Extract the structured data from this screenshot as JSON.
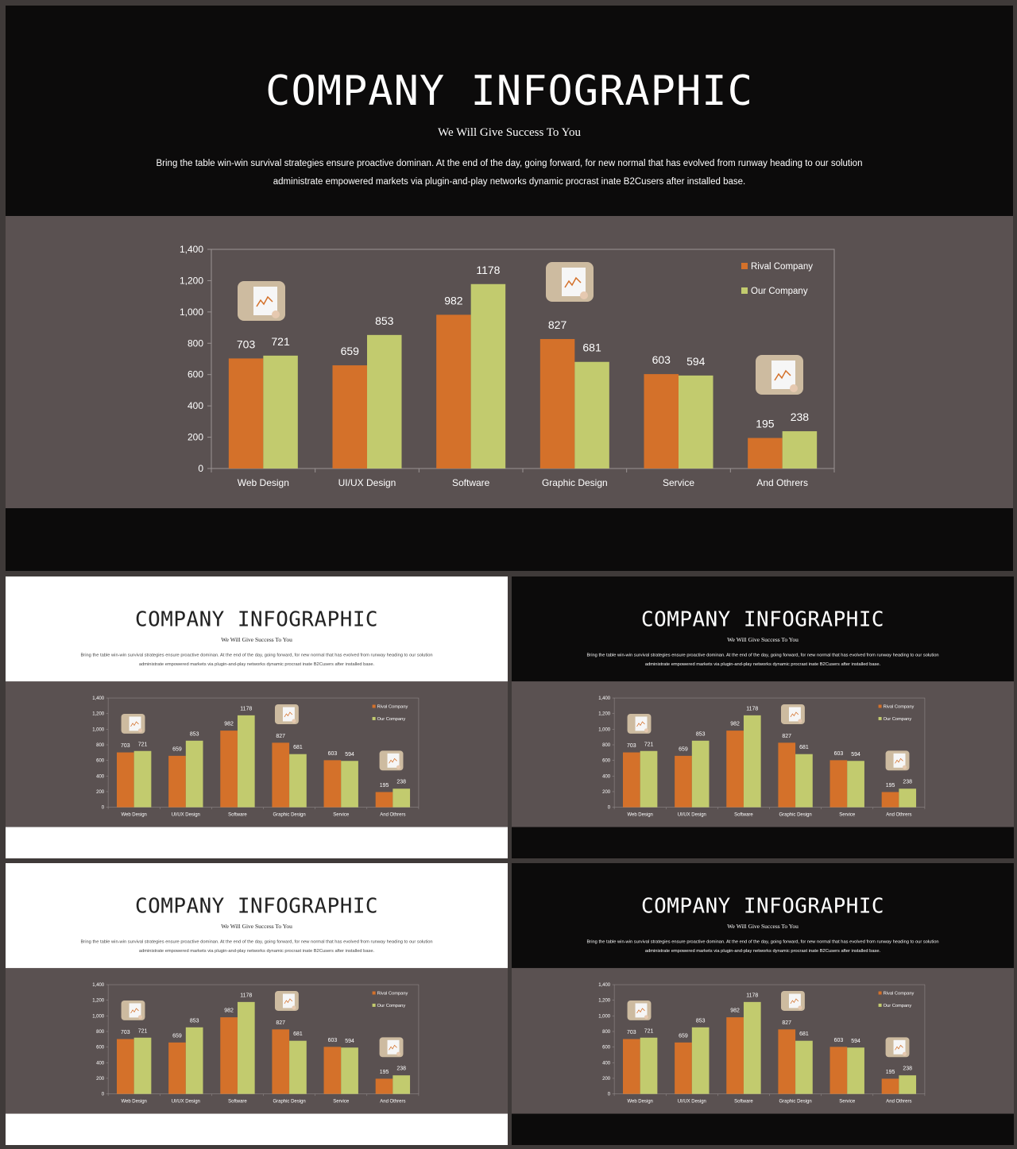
{
  "slide": {
    "title": "COMPANY INFOGRAPHIC",
    "subtitle": "We Will Give Success To You",
    "description": "Bring the table win-win survival strategies ensure proactive dominan. At the end of the  day, going forward, for new normal that has evolved from runway heading to our solution administrate empowered  markets via plugin-and-play networks dynamic procrast inate B2Cusers after installed base."
  },
  "colors": {
    "rival": "#d4712a",
    "ours": "#c2cb6e",
    "band": "#5a5151",
    "dark_header": "#0c0b0b",
    "light_header": "#ffffff"
  },
  "variants": [
    "dark",
    "light",
    "dark",
    "light",
    "dark"
  ],
  "chart_data": {
    "type": "bar",
    "categories": [
      "Web Design",
      "UI/UX Design",
      "Software",
      "Graphic Design",
      "Service",
      "And Othrers"
    ],
    "series": [
      {
        "name": "Rival Company",
        "values": [
          703,
          659,
          982,
          827,
          603,
          195
        ]
      },
      {
        "name": "Our Company",
        "values": [
          721,
          853,
          1178,
          681,
          594,
          238
        ]
      }
    ],
    "ylim": [
      0,
      1400
    ],
    "yticks": [
      "0",
      "200",
      "400",
      "600",
      "800",
      "1,000",
      "1,200",
      "1,400"
    ],
    "legend": "top-right",
    "grid": false,
    "photo_icons": [
      "chart-photo-icon",
      "chart-photo-icon",
      "chart-photo-icon"
    ]
  }
}
